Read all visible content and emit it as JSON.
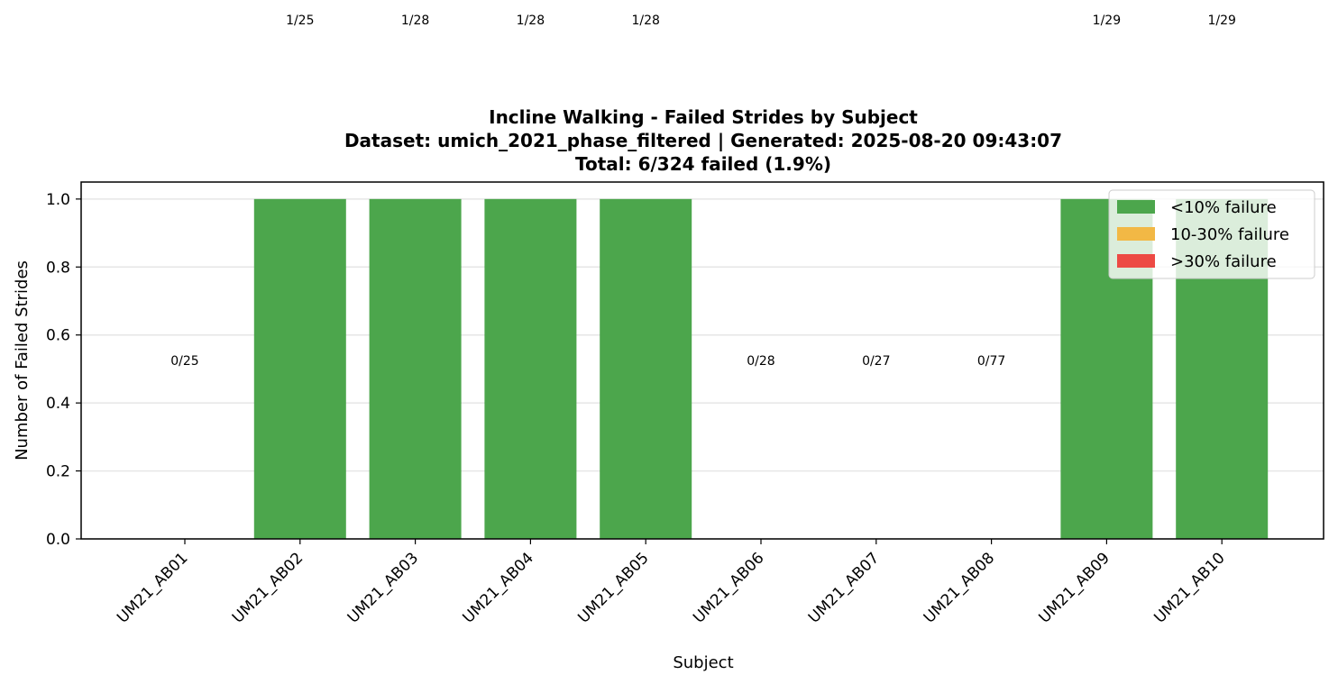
{
  "chart_data": {
    "type": "bar",
    "title": "Incline Walking - Failed Strides by Subject",
    "subtitle": "Dataset: umich_2021_phase_filtered | Generated: 2025-08-20 09:43:07",
    "summary": "Total: 6/324 failed (1.9%)",
    "xlabel": "Subject",
    "ylabel": "Number of Failed Strides",
    "ylim": [
      0,
      1.05
    ],
    "yticks": [
      "0.0",
      "0.2",
      "0.4",
      "0.6",
      "0.8",
      "1.0"
    ],
    "grid": true,
    "legend_position": "top-right",
    "categories": [
      "UM21_AB01",
      "UM21_AB02",
      "UM21_AB03",
      "UM21_AB04",
      "UM21_AB05",
      "UM21_AB06",
      "UM21_AB07",
      "UM21_AB08",
      "UM21_AB09",
      "UM21_AB10"
    ],
    "values": [
      0,
      1,
      1,
      1,
      1,
      0,
      0,
      0,
      1,
      1
    ],
    "labels": [
      "0/25",
      "1/25",
      "1/28",
      "1/28",
      "1/28",
      "0/28",
      "0/27",
      "0/77",
      "1/29",
      "1/29"
    ],
    "legend": [
      {
        "label": "<10% failure",
        "color": "#4ca64c"
      },
      {
        "label": "10-30% failure",
        "color": "#f2b845"
      },
      {
        "label": ">30% failure",
        "color": "#ed4a44"
      }
    ],
    "bar_color": "#4ca64c"
  }
}
